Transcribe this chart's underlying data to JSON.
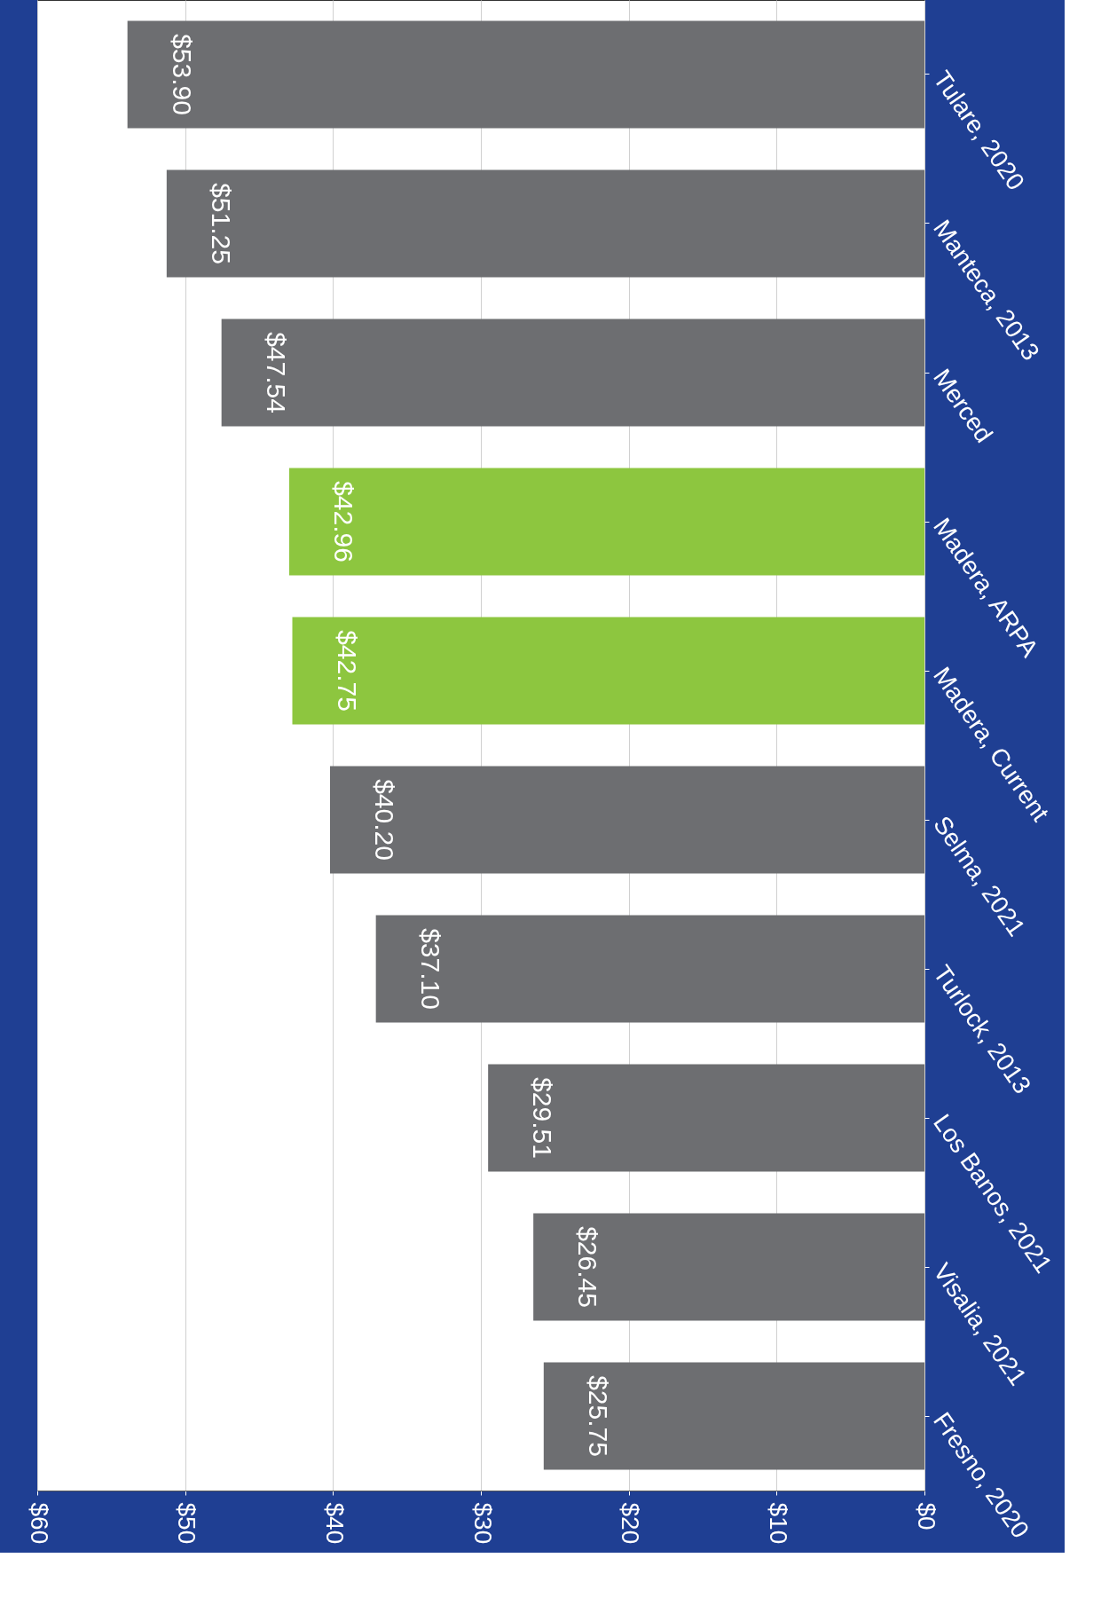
{
  "chart_data": {
    "type": "bar",
    "orientation": "horizontal",
    "categories": [
      "Tulare, 2020",
      "Manteca, 2013",
      "Merced",
      "Madera, ARPA",
      "Madera, Current",
      "Selma, 2021",
      "Turlock, 2013",
      "Los Banos, 2021",
      "Visalia, 2021",
      "Fresno, 2020"
    ],
    "values": [
      53.9,
      51.25,
      47.54,
      42.96,
      42.75,
      40.2,
      37.1,
      29.51,
      26.45,
      25.75
    ],
    "colors": [
      "#6d6e71",
      "#6d6e71",
      "#6d6e71",
      "#8dc63f",
      "#8dc63f",
      "#6d6e71",
      "#6d6e71",
      "#6d6e71",
      "#6d6e71",
      "#6d6e71"
    ],
    "value_labels": [
      "$53.90",
      "$51.25",
      "$47.54",
      "$42.96",
      "$42.75",
      "$40.20",
      "$37.10",
      "$29.51",
      "$26.45",
      "$25.75"
    ],
    "xlim": [
      60,
      0
    ],
    "xticks": [
      {
        "value": 60,
        "label": "$60"
      },
      {
        "value": 50,
        "label": "$50"
      },
      {
        "value": 40,
        "label": "$40"
      },
      {
        "value": 30,
        "label": "$30"
      },
      {
        "value": 20,
        "label": "$20"
      },
      {
        "value": 10,
        "label": "$10"
      },
      {
        "value": 0,
        "label": "$0"
      }
    ],
    "grid": "x"
  }
}
